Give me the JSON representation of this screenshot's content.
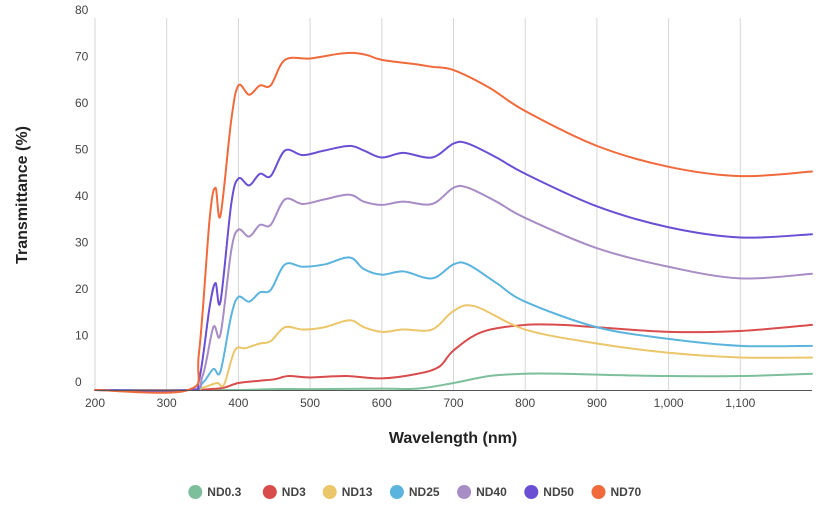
{
  "chart_data": {
    "type": "line",
    "title": "",
    "xlabel": "Wavelength (nm)",
    "ylabel": "Transmittance (%)",
    "xlim": [
      200,
      1200
    ],
    "ylim": [
      0,
      80
    ],
    "x_ticks": [
      200,
      300,
      400,
      500,
      600,
      700,
      800,
      900,
      1000,
      1100
    ],
    "x_tick_labels": [
      "200",
      "300",
      "400",
      "500",
      "600",
      "700",
      "800",
      "900",
      "1,000",
      "1,100"
    ],
    "y_ticks": [
      0,
      10,
      20,
      30,
      40,
      50,
      60,
      70,
      80
    ],
    "y_tick_labels": [
      "0",
      "10",
      "20",
      "30",
      "40",
      "50",
      "60",
      "70",
      "80"
    ],
    "grid": "vertical",
    "legend_position": "bottom",
    "series": [
      {
        "name": "ND0.3",
        "color": "#7dbf9b",
        "points": [
          [
            200,
            0
          ],
          [
            330,
            0
          ],
          [
            400,
            0
          ],
          [
            450,
            0.2
          ],
          [
            500,
            0.2
          ],
          [
            600,
            0.3
          ],
          [
            650,
            0.3
          ],
          [
            700,
            1.5
          ],
          [
            750,
            3
          ],
          [
            800,
            3.5
          ],
          [
            850,
            3.5
          ],
          [
            900,
            3.3
          ],
          [
            1000,
            3
          ],
          [
            1100,
            3
          ],
          [
            1200,
            3.5
          ]
        ]
      },
      {
        "name": "ND3",
        "color": "#d94c4c",
        "points": [
          [
            200,
            0
          ],
          [
            330,
            0
          ],
          [
            360,
            0.2
          ],
          [
            380,
            0.5
          ],
          [
            400,
            1.5
          ],
          [
            430,
            2
          ],
          [
            450,
            2.3
          ],
          [
            470,
            3
          ],
          [
            500,
            2.7
          ],
          [
            550,
            3
          ],
          [
            600,
            2.5
          ],
          [
            650,
            3.5
          ],
          [
            680,
            5
          ],
          [
            700,
            8.5
          ],
          [
            740,
            12.5
          ],
          [
            800,
            14
          ],
          [
            850,
            14
          ],
          [
            900,
            13.5
          ],
          [
            1000,
            12.5
          ],
          [
            1100,
            12.7
          ],
          [
            1200,
            14
          ]
        ]
      },
      {
        "name": "ND13",
        "color": "#ebc66a",
        "points": [
          [
            200,
            0
          ],
          [
            330,
            0
          ],
          [
            350,
            0.5
          ],
          [
            370,
            1.5
          ],
          [
            380,
            1.2
          ],
          [
            395,
            8.5
          ],
          [
            410,
            9
          ],
          [
            430,
            10
          ],
          [
            445,
            10.5
          ],
          [
            465,
            13.5
          ],
          [
            490,
            13
          ],
          [
            520,
            13.5
          ],
          [
            555,
            15
          ],
          [
            575,
            13.5
          ],
          [
            600,
            12.5
          ],
          [
            630,
            13
          ],
          [
            670,
            13
          ],
          [
            700,
            17
          ],
          [
            730,
            18
          ],
          [
            800,
            13
          ],
          [
            900,
            10
          ],
          [
            1000,
            8
          ],
          [
            1100,
            7
          ],
          [
            1200,
            7
          ]
        ]
      },
      {
        "name": "ND25",
        "color": "#5bb4de",
        "points": [
          [
            200,
            0
          ],
          [
            330,
            0
          ],
          [
            350,
            1.5
          ],
          [
            365,
            4.5
          ],
          [
            375,
            4
          ],
          [
            390,
            16
          ],
          [
            400,
            20
          ],
          [
            415,
            19
          ],
          [
            430,
            21
          ],
          [
            445,
            21.5
          ],
          [
            465,
            27
          ],
          [
            490,
            26.5
          ],
          [
            520,
            27
          ],
          [
            555,
            28.5
          ],
          [
            575,
            26
          ],
          [
            600,
            24.8
          ],
          [
            630,
            25.5
          ],
          [
            670,
            24
          ],
          [
            700,
            27
          ],
          [
            720,
            27
          ],
          [
            760,
            23
          ],
          [
            800,
            19
          ],
          [
            900,
            13.5
          ],
          [
            1000,
            11
          ],
          [
            1100,
            9.5
          ],
          [
            1200,
            9.5
          ]
        ]
      },
      {
        "name": "ND40",
        "color": "#a88cc5",
        "points": [
          [
            200,
            0
          ],
          [
            330,
            0
          ],
          [
            350,
            3
          ],
          [
            365,
            13.5
          ],
          [
            375,
            12
          ],
          [
            390,
            30
          ],
          [
            400,
            34.5
          ],
          [
            415,
            33
          ],
          [
            430,
            35.5
          ],
          [
            445,
            35.5
          ],
          [
            465,
            41
          ],
          [
            490,
            40
          ],
          [
            520,
            41
          ],
          [
            555,
            42
          ],
          [
            575,
            40.5
          ],
          [
            600,
            39.8
          ],
          [
            630,
            40.5
          ],
          [
            670,
            40
          ],
          [
            700,
            43.5
          ],
          [
            720,
            43.5
          ],
          [
            760,
            40.5
          ],
          [
            800,
            37
          ],
          [
            900,
            30.5
          ],
          [
            1000,
            26.5
          ],
          [
            1100,
            24
          ],
          [
            1200,
            25
          ]
        ]
      },
      {
        "name": "ND50",
        "color": "#6a4fd4",
        "points": [
          [
            200,
            0
          ],
          [
            330,
            0
          ],
          [
            345,
            2
          ],
          [
            360,
            18
          ],
          [
            368,
            23
          ],
          [
            375,
            19
          ],
          [
            390,
            40
          ],
          [
            400,
            45.5
          ],
          [
            415,
            44
          ],
          [
            430,
            46.5
          ],
          [
            445,
            46
          ],
          [
            465,
            51.5
          ],
          [
            490,
            50.5
          ],
          [
            520,
            51.5
          ],
          [
            555,
            52.5
          ],
          [
            575,
            51.5
          ],
          [
            600,
            50
          ],
          [
            630,
            51
          ],
          [
            670,
            50
          ],
          [
            700,
            53
          ],
          [
            720,
            53
          ],
          [
            760,
            50
          ],
          [
            800,
            46.5
          ],
          [
            900,
            39.5
          ],
          [
            1000,
            35
          ],
          [
            1100,
            32.8
          ],
          [
            1200,
            33.5
          ]
        ]
      },
      {
        "name": "ND70",
        "color": "#f06a3c",
        "points": [
          [
            200,
            0
          ],
          [
            330,
            0
          ],
          [
            345,
            8
          ],
          [
            360,
            37
          ],
          [
            368,
            43.5
          ],
          [
            375,
            37.5
          ],
          [
            390,
            58
          ],
          [
            400,
            65.5
          ],
          [
            415,
            63.5
          ],
          [
            430,
            65.5
          ],
          [
            445,
            65.5
          ],
          [
            465,
            71
          ],
          [
            500,
            71.3
          ],
          [
            540,
            72.3
          ],
          [
            560,
            72.5
          ],
          [
            580,
            72
          ],
          [
            600,
            71
          ],
          [
            650,
            70
          ],
          [
            670,
            69.5
          ],
          [
            700,
            68.8
          ],
          [
            750,
            65
          ],
          [
            800,
            60
          ],
          [
            900,
            52.5
          ],
          [
            1000,
            48
          ],
          [
            1100,
            46
          ],
          [
            1200,
            47
          ]
        ]
      }
    ]
  }
}
